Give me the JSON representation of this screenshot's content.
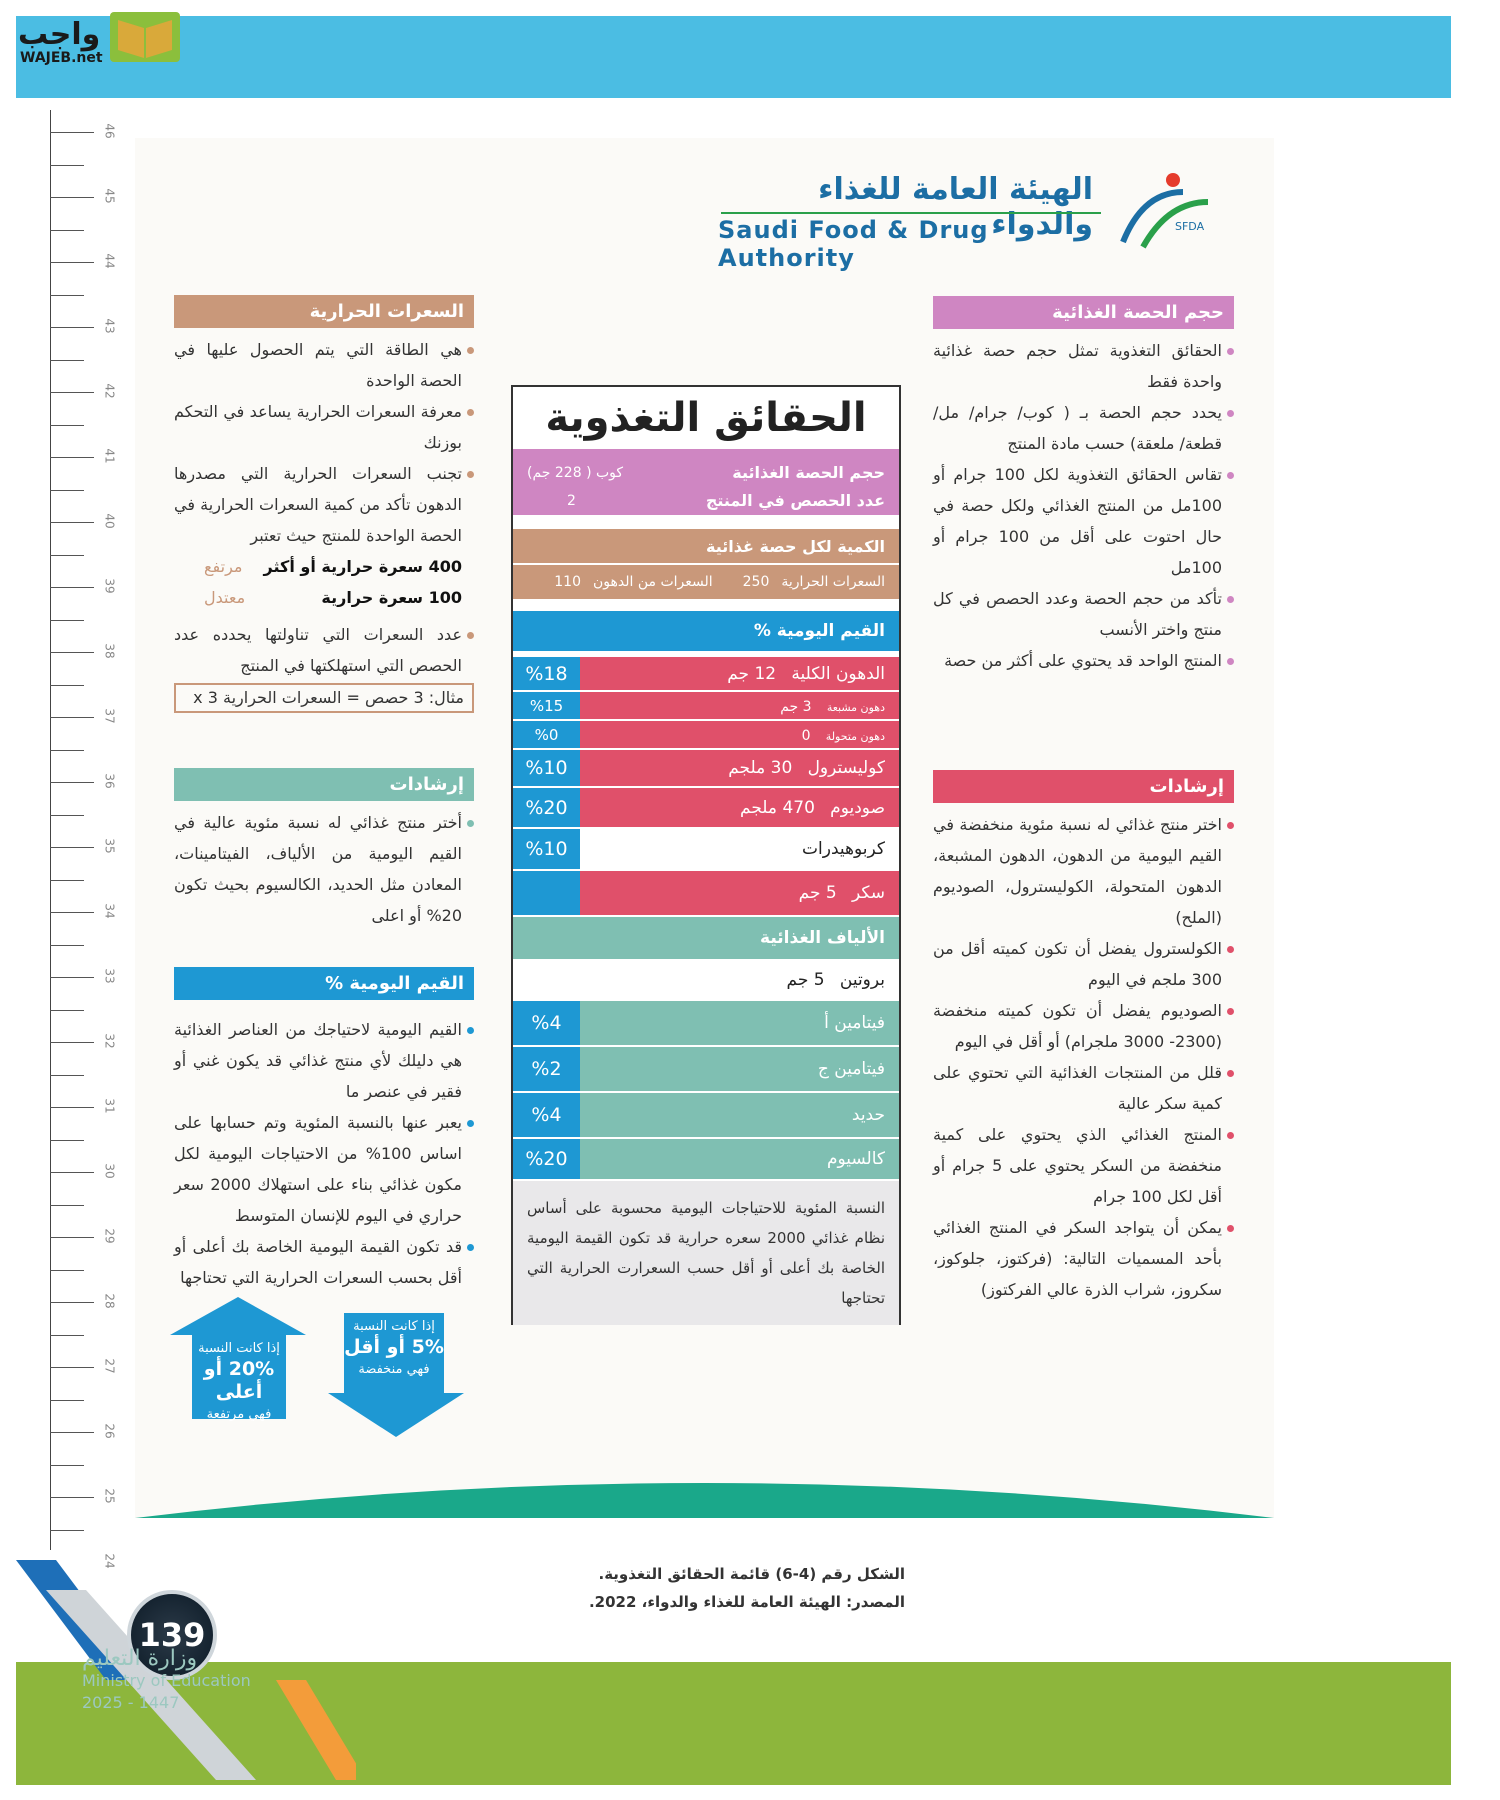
{
  "header": {
    "brand_ar": "واجب",
    "brand_en": "WAJEB.net"
  },
  "ruler": {
    "numbers": [
      "46",
      "45",
      "44",
      "43",
      "42",
      "41",
      "40",
      "39",
      "38",
      "37",
      "36",
      "35",
      "34",
      "33",
      "32",
      "31",
      "30",
      "29",
      "28",
      "27",
      "26",
      "25",
      "24"
    ]
  },
  "sfda": {
    "name_ar": "الهيئة العامة للغذاء والدواء",
    "name_en": "Saudi Food & Drug Authority",
    "mark": "SFDA"
  },
  "right": {
    "serving": {
      "title": "حجم الحصة الغذائية",
      "items": [
        "الحقائق التغذوية تمثل حجم حصة غذائية واحدة فقط",
        "يحدد حجم الحصة بـ ( كوب/ جرام/ مل/ قطعة/ ملعقة) حسب مادة المنتج",
        "تقاس الحقائق التغذوية لكل 100 جرام أو 100مل من المنتج الغذائي ولكل حصة في حال احتوت على أقل من 100 جرام أو 100مل",
        "تأكد من حجم الحصة وعدد الحصص في كل منتج واختر الأنسب",
        "المنتج الواحد قد يحتوي على أكثر من حصة"
      ]
    },
    "guidance": {
      "title": "إرشادات",
      "items": [
        "اختر منتج غذائي له نسبة مئوية منخفضة في القيم اليومية من الدهون، الدهون المشبعة، الدهون المتحولة، الكوليسترول، الصوديوم (الملح)",
        "الكولسترول يفضل أن تكون كميته أقل من 300 ملجم في اليوم",
        "الصوديوم يفضل أن تكون كميته منخفضة (2300- 3000 ملجرام) أو أقل في اليوم",
        "قلل من المنتجات الغذائية التي تحتوي على كمية سكر عالية",
        "المنتج الغذائي الذي يحتوي على كمية منخفضة من السكر يحتوي على 5 جرام أو أقل لكل 100 جرام",
        "يمكن أن يتواجد السكر في المنتج الغذائي بأحد المسميات التالية: (فركتوز، جلوكوز، سكروز، شراب الذرة عالي الفركتوز)"
      ]
    }
  },
  "left": {
    "calories": {
      "title": "السعرات الحرارية",
      "items": [
        "هي الطاقة التي يتم الحصول عليها في الحصة الواحدة",
        "معرفة السعرات الحرارية يساعد في التحكم بوزنك",
        "تجنب السعرات الحرارية التي مصدرها الدهون تأكد من كمية السعرات الحرارية في الحصة الواحدة للمنتج حيث تعتبر"
      ],
      "levels": [
        {
          "value": "400 سعرة حرارية أو أكثر",
          "label": "مرتفع"
        },
        {
          "value": "100 سعرة حرارية",
          "label": "معتدل"
        }
      ],
      "servings_item": "عدد السعرات التي تناولتها يحدده عدد الحصص التي استهلكتها في المنتج",
      "example": "مثال:  3 حصص = السعرات الحرارية x 3"
    },
    "guidance": {
      "title": "إرشادات",
      "items": [
        "أختر منتج غذائي له نسبة مئوية عالية في القيم اليومية من الألياف، الفيتامينات، المعادن مثل الحديد، الكالسيوم بحيث تكون 20% أو اعلى"
      ]
    },
    "daily": {
      "title": "القيم اليومية %",
      "items": [
        "القيم اليومية لاحتياجك من العناصر الغذائية هي دليلك لأي منتج غذائي قد يكون غني أو فقير في عنصر ما",
        "يعبر عنها بالنسبة المئوية وتم حسابها على اساس 100% من الاحتياجات اليومية لكل مكون غذائي بناء على استهلاك 2000 سعر حراري في اليوم للإنسان المتوسط",
        "قد تكون القيمة اليومية الخاصة بك أعلى أو أقل بحسب السعرات الحرارية التي تحتاجها"
      ]
    },
    "arrow_high": {
      "line1": "إذا كانت النسبة",
      "line2": "20% أو أعلى",
      "line3": "فهي مرتفعة"
    },
    "arrow_low": {
      "line1": "إذا كانت النسبة",
      "line2": "5% أو أقل",
      "line3": "فهي منخفضة"
    }
  },
  "label": {
    "title": "الحقائق التغذوية",
    "serving_size_label": "حجم الحصة الغذائية",
    "serving_size_value": "كوب ( 228 جم)",
    "servings_label": "عدد الحصص في المنتج",
    "servings_value": "2",
    "per_serving": "الكمية لكل حصة غذائية",
    "calories_label": "السعرات الحرارية",
    "calories_value": "250",
    "fat_cal_label": "السعرات من الدهون",
    "fat_cal_value": "110",
    "dv_header": "القيم اليومية %",
    "rows": [
      {
        "name": "الدهون الكلية",
        "amount": "12 جم",
        "pct": "%18"
      },
      {
        "name": "دهون مشبعة",
        "amount": "3 جم",
        "pct": "%15"
      },
      {
        "name": "دهون متحولة",
        "amount": "0",
        "pct": "%0"
      },
      {
        "name": "كوليسترول",
        "amount": "30 ملجم",
        "pct": "%10"
      },
      {
        "name": "صوديوم",
        "amount": "470 ملجم",
        "pct": "%20"
      },
      {
        "name": "كربوهيدرات",
        "amount": "",
        "pct": "%10"
      },
      {
        "name": "سكر",
        "amount": "5 جم"
      },
      {
        "name": "الألياف الغذائية",
        "amount": ""
      },
      {
        "name": "بروتين",
        "amount": "5 جم"
      },
      {
        "name": "فيتامين أ",
        "pct": "%4"
      },
      {
        "name": "فيتامين ج",
        "pct": "%2"
      },
      {
        "name": "حديد",
        "pct": "%4"
      },
      {
        "name": "كالسيوم",
        "pct": "%20"
      }
    ],
    "note": "النسبة المئوية للاحتياجات اليومية محسوبة على أساس نظام غذائي 2000 سعره حرارية قد تكون القيمة اليومية الخاصة بك أعلى أو أقل حسب السعرارت الحرارية التي تحتاجها"
  },
  "caption": {
    "figure": "الشكل رقم (4-6)  قائمة الحقائق التغذوية.",
    "source": "المصدر:  الهيئة العامة للغذاء والدواء، 2022."
  },
  "footer": {
    "page": "139",
    "ministry_ar": "وزارة التعليم",
    "ministry_en": "Ministry of Education",
    "year": "2025 - 1447"
  },
  "colors": {
    "topbar": "#4bbde3",
    "pink": "#cf86c2",
    "tan": "#c9987a",
    "blue": "#1e98d3",
    "red": "#e0506a",
    "teal": "#7fbfb2",
    "green": "#8db63c"
  }
}
